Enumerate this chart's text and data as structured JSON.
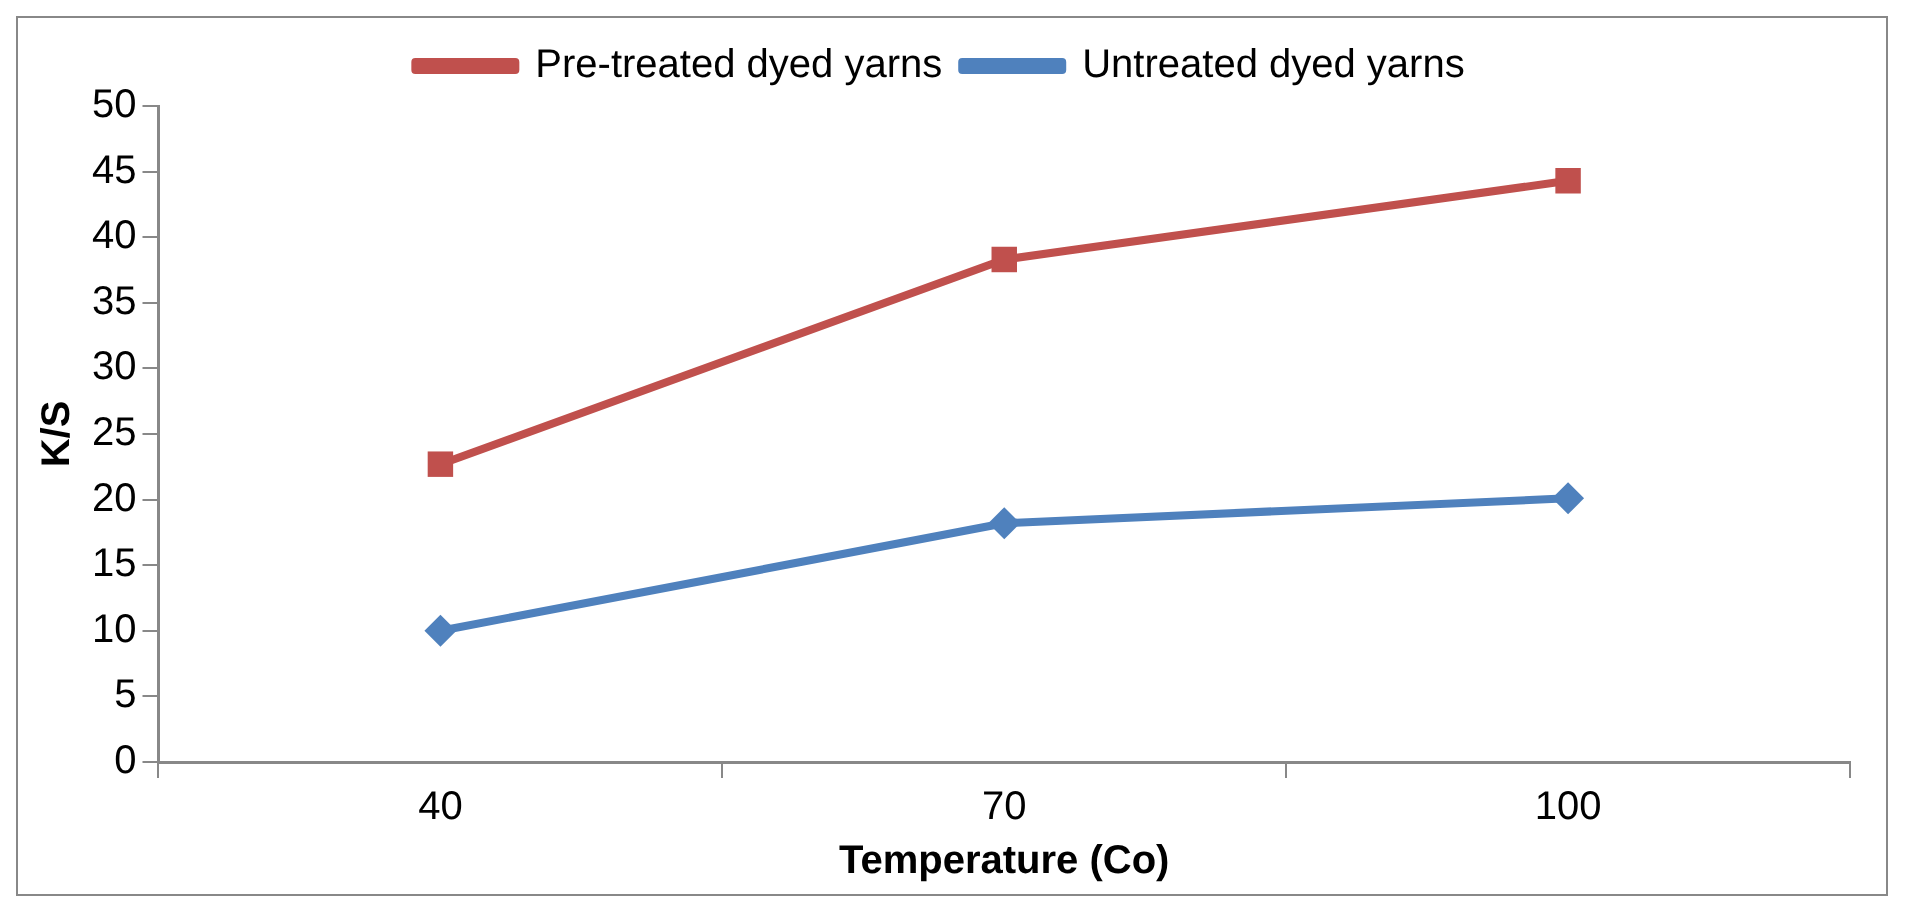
{
  "chart_data": {
    "type": "line",
    "xlabel": "Temperature (Co)",
    "ylabel": "K/S",
    "categories": [
      "40",
      "70",
      "100"
    ],
    "series": [
      {
        "name": "Pre-treated dyed yarns",
        "color": "#c0504d",
        "marker": "square",
        "values": [
          22.7,
          38.3,
          44.3
        ]
      },
      {
        "name": "Untreated dyed yarns",
        "color": "#4f81bd",
        "marker": "diamond",
        "values": [
          10,
          18.2,
          20.1
        ]
      }
    ],
    "ylim": [
      0,
      50
    ],
    "yticks": [
      0,
      5,
      10,
      15,
      20,
      25,
      30,
      35,
      40,
      45,
      50
    ],
    "grid": false,
    "legend": "top",
    "line_style": "solid"
  }
}
